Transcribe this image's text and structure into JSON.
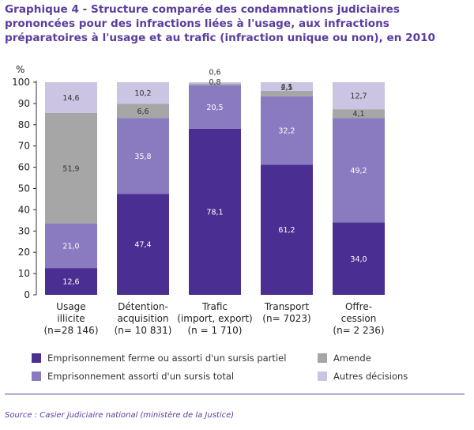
{
  "title": "Graphique 4 - Structure comparée des condamnations judiciaires prononcées pour des infractions liées à l'usage, aux infractions préparatoires à l'usage et au trafic (infraction unique ou non), en 2010",
  "source": "Source : Casier judiciaire national (ministère de la Justice)",
  "chart_data": {
    "type": "bar",
    "stacked": true,
    "ylabel": "%",
    "ylim": [
      0,
      100
    ],
    "yticks": [
      0,
      10,
      20,
      30,
      40,
      50,
      60,
      70,
      80,
      90,
      100
    ],
    "categories": [
      [
        "Usage",
        "illicite",
        "(n=28 146)"
      ],
      [
        "Détention-",
        "acquisition",
        "(n= 10 831)"
      ],
      [
        "Trafic",
        "(import, export)",
        "(n = 1 710)"
      ],
      [
        "Transport",
        "(n= 7023)"
      ],
      [
        "Offre-",
        "cession",
        "(n= 2 236)"
      ]
    ],
    "series": [
      {
        "name": "Emprisonnement ferme ou assorti d'un sursis partiel",
        "color": "#4b2e91",
        "values": [
          12.6,
          47.4,
          78.1,
          61.2,
          34.0
        ],
        "labels": [
          "12,6",
          "47,4",
          "78,1",
          "61,2",
          "34,0"
        ]
      },
      {
        "name": "Emprisonnement assorti d'un sursis total",
        "color": "#8a7ac0",
        "values": [
          21.0,
          35.8,
          20.5,
          32.2,
          49.2
        ],
        "labels": [
          "21,0",
          "35,8",
          "20,5",
          "32,2",
          "49,2"
        ]
      },
      {
        "name": "Amende",
        "color": "#a6a6a6",
        "values": [
          51.9,
          6.6,
          0.8,
          2.5,
          4.1
        ],
        "labels": [
          "51,9",
          "6,6",
          "0,8",
          "2,5",
          "4,1"
        ]
      },
      {
        "name": "Autres décisions",
        "color": "#cbc4e3",
        "values": [
          14.6,
          10.2,
          0.6,
          4.1,
          12.7
        ],
        "labels": [
          "14,6",
          "10,2",
          "0,6",
          "4,1",
          "12,7"
        ]
      }
    ],
    "grid": false,
    "legend": "bottom"
  }
}
